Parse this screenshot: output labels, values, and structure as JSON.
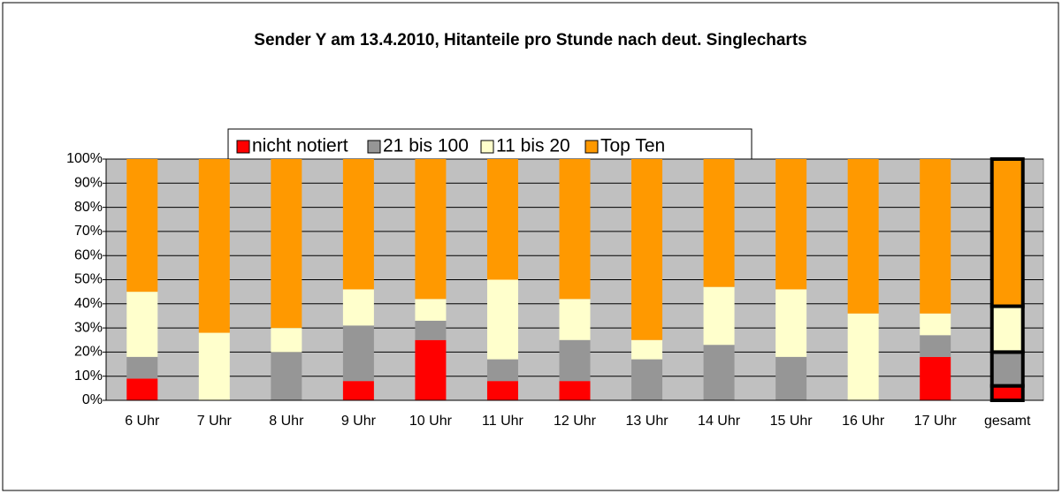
{
  "chart_data": {
    "type": "stacked_bar",
    "title": "Sender Y am 13.4.2010, Hitanteile pro Stunde nach deut. Singlecharts",
    "categories": [
      "6 Uhr",
      "7 Uhr",
      "8 Uhr",
      "9 Uhr",
      "10 Uhr",
      "11 Uhr",
      "12 Uhr",
      "13 Uhr",
      "14 Uhr",
      "15 Uhr",
      "16 Uhr",
      "17 Uhr",
      "gesamt"
    ],
    "series": [
      {
        "name": "nicht notiert",
        "color": "#ff0000",
        "values": [
          9,
          0,
          0,
          8,
          25,
          8,
          8,
          0,
          0,
          0,
          0,
          18,
          6
        ]
      },
      {
        "name": "21 bis 100",
        "color": "#969696",
        "values": [
          9,
          0,
          20,
          23,
          8,
          9,
          17,
          17,
          23,
          18,
          0,
          9,
          14
        ]
      },
      {
        "name": "11 bis 20",
        "color": "#ffffcc",
        "values": [
          27,
          28,
          10,
          15,
          9,
          33,
          17,
          8,
          24,
          28,
          36,
          9,
          19
        ]
      },
      {
        "name": "Top Ten",
        "color": "#ff9900",
        "values": [
          55,
          72,
          70,
          54,
          58,
          50,
          58,
          75,
          53,
          54,
          64,
          64,
          61
        ]
      }
    ],
    "ylim": [
      0,
      100
    ],
    "yticks": [
      {
        "value": 0,
        "label": "0%"
      },
      {
        "value": 10,
        "label": "10%"
      },
      {
        "value": 20,
        "label": "20%"
      },
      {
        "value": 30,
        "label": "30%"
      },
      {
        "value": 40,
        "label": "40%"
      },
      {
        "value": 50,
        "label": "50%"
      },
      {
        "value": 60,
        "label": "60%"
      },
      {
        "value": 70,
        "label": "70%"
      },
      {
        "value": 80,
        "label": "80%"
      },
      {
        "value": 90,
        "label": "90%"
      },
      {
        "value": 100,
        "label": "100%"
      }
    ],
    "grid": true,
    "legend": "top"
  }
}
